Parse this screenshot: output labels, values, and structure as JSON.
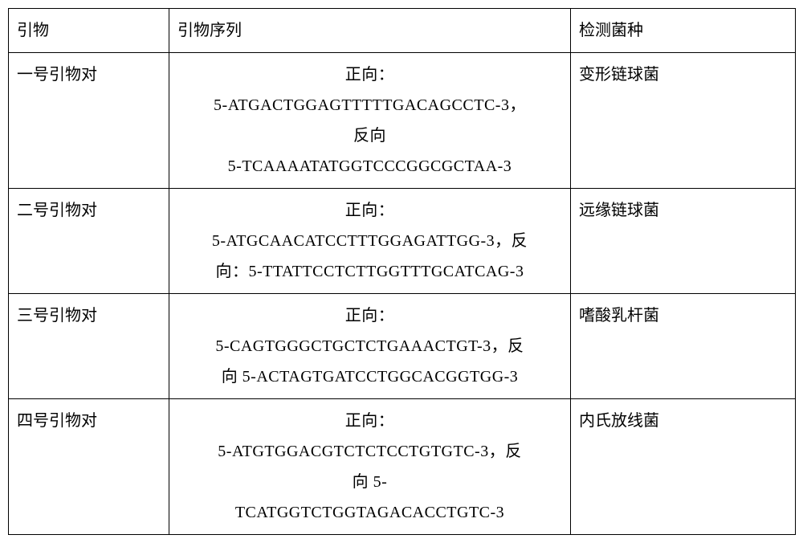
{
  "headers": {
    "col1": "引物",
    "col2": "引物序列",
    "col3": "检测菌种"
  },
  "rows": [
    {
      "primer": "一号引物对",
      "seq_line1": "正向：",
      "seq_line2": "5-ATGACTGGAGTTTTTGACAGCCTC-3，",
      "seq_line3": "反向",
      "seq_line4": "5-TCAAAATATGGTCCCGGCGCTAA-3",
      "species": "变形链球菌"
    },
    {
      "primer": "二号引物对",
      "seq_line1": "正向：",
      "seq_line2": "5-ATGCAACATCCTTTGGAGATTGG-3，反",
      "seq_line3": "向：5-TTATTCCTCTTGGTTTGCATCAG-3",
      "seq_line4": "",
      "species": "远缘链球菌"
    },
    {
      "primer": "三号引物对",
      "seq_line1": "正向：",
      "seq_line2": "5-CAGTGGGCTGCTCTGAAACTGT-3，反",
      "seq_line3": "向 5-ACTAGTGATCCTGGCACGGTGG-3",
      "seq_line4": "",
      "species": "嗜酸乳杆菌"
    },
    {
      "primer": "四号引物对",
      "seq_line1": "正向：",
      "seq_line2": "5-ATGTGGACGTCTCTCCTGTGTC-3，反",
      "seq_line3": "向 5-",
      "seq_line4": "TCATGGTCTGGTAGACACCTGTC-3",
      "species": "内氏放线菌"
    }
  ]
}
